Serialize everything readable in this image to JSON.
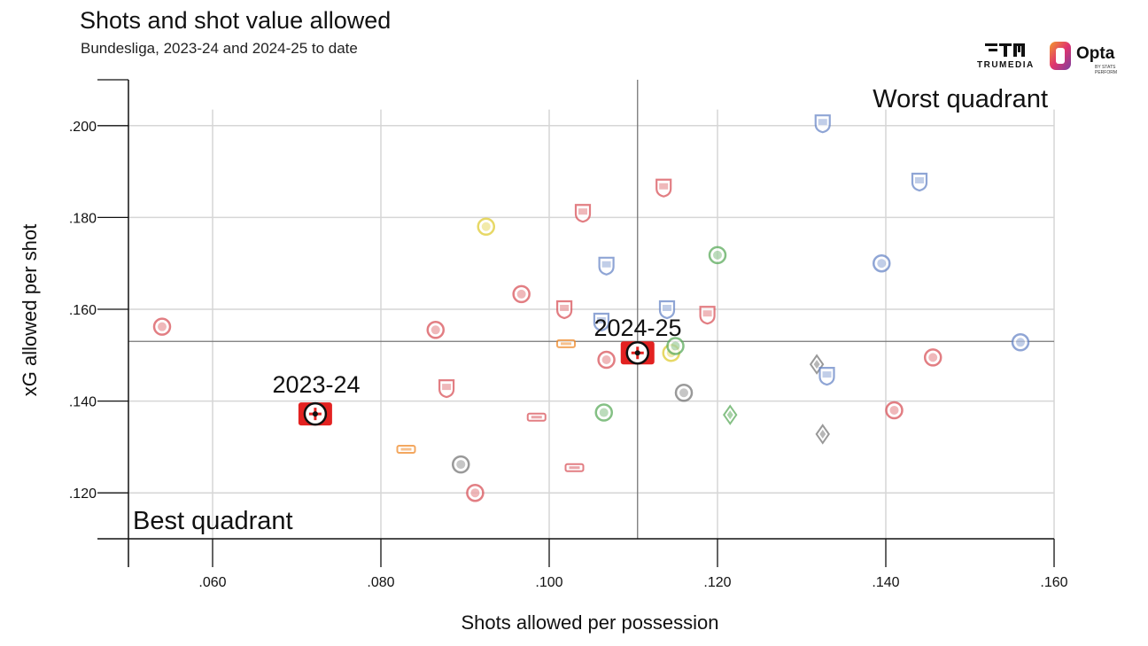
{
  "title": "Shots and shot value allowed",
  "subtitle": "Bundesliga, 2023-24 and 2024-25 to date",
  "branding": {
    "trumedia": "TRUMEDIA",
    "opta": "Opta",
    "opta_sub": "BY STATS PERFORM"
  },
  "colors": {
    "grid": "#d6d6d6",
    "axis": "#111111",
    "reference_line": "#777777"
  },
  "chart_data": {
    "type": "scatter",
    "title": "Shots and shot value allowed",
    "subtitle": "Bundesliga, 2023-24 and 2024-25 to date",
    "xlabel": "Shots allowed per possession",
    "ylabel": "xG allowed per shot",
    "xlim": [
      0.05,
      0.16
    ],
    "ylim": [
      0.11,
      0.21
    ],
    "x_ticks": [
      ".060",
      ".080",
      ".100",
      ".120",
      ".140",
      ".160"
    ],
    "y_ticks": [
      ".120",
      ".140",
      ".160",
      ".180",
      ".200"
    ],
    "x_tick_values": [
      0.06,
      0.08,
      0.1,
      0.12,
      0.14,
      0.16
    ],
    "y_tick_values": [
      0.12,
      0.14,
      0.16,
      0.18,
      0.2
    ],
    "grid": true,
    "reference_lines": {
      "x": 0.1105,
      "y": 0.153
    },
    "annotations": {
      "worst": "Worst quadrant",
      "best": "Best quadrant",
      "season_2023": "2023-24",
      "season_2024": "2024-25"
    },
    "highlight_points": [
      {
        "label": "2023-24",
        "x": 0.0722,
        "y": 0.1372
      },
      {
        "label": "2024-25",
        "x": 0.1105,
        "y": 0.1505
      }
    ],
    "points": [
      {
        "x": 0.054,
        "y": 0.1562,
        "color": "#d9535a",
        "icon": "circle-crest"
      },
      {
        "x": 0.0865,
        "y": 0.1555,
        "color": "#d9535a",
        "icon": "circle-crest"
      },
      {
        "x": 0.0925,
        "y": 0.178,
        "color": "#e0cc33",
        "icon": "circle-crest"
      },
      {
        "x": 0.0967,
        "y": 0.1633,
        "color": "#d9535a",
        "icon": "circle-crest"
      },
      {
        "x": 0.1018,
        "y": 0.16,
        "color": "#d9535a",
        "icon": "shield-crest"
      },
      {
        "x": 0.104,
        "y": 0.181,
        "color": "#d9535a",
        "icon": "shield-crest"
      },
      {
        "x": 0.102,
        "y": 0.1525,
        "color": "#f08a2a",
        "icon": "bar-crest"
      },
      {
        "x": 0.1062,
        "y": 0.1573,
        "color": "#6a88c8",
        "icon": "shield-crest"
      },
      {
        "x": 0.1068,
        "y": 0.1695,
        "color": "#6a88c8",
        "icon": "shield-crest"
      },
      {
        "x": 0.1068,
        "y": 0.149,
        "color": "#d9535a",
        "icon": "circle-crest"
      },
      {
        "x": 0.1136,
        "y": 0.1865,
        "color": "#d9535a",
        "icon": "shield-crest"
      },
      {
        "x": 0.114,
        "y": 0.16,
        "color": "#6a88c8",
        "icon": "shield-crest"
      },
      {
        "x": 0.1145,
        "y": 0.1505,
        "color": "#e0cc33",
        "icon": "circle-crest"
      },
      {
        "x": 0.115,
        "y": 0.152,
        "color": "#5cab5c",
        "icon": "circle-crest"
      },
      {
        "x": 0.1188,
        "y": 0.1588,
        "color": "#d9535a",
        "icon": "shield-crest"
      },
      {
        "x": 0.12,
        "y": 0.1718,
        "color": "#5cab5c",
        "icon": "circle-crest"
      },
      {
        "x": 0.116,
        "y": 0.1418,
        "color": "#777777",
        "icon": "circle-crest"
      },
      {
        "x": 0.1215,
        "y": 0.137,
        "color": "#5cab5c",
        "icon": "diamond-crest"
      },
      {
        "x": 0.1318,
        "y": 0.148,
        "color": "#777777",
        "icon": "diamond-crest"
      },
      {
        "x": 0.133,
        "y": 0.1455,
        "color": "#6a88c8",
        "icon": "shield-crest"
      },
      {
        "x": 0.1325,
        "y": 0.1328,
        "color": "#777777",
        "icon": "diamond-crest"
      },
      {
        "x": 0.1325,
        "y": 0.2005,
        "color": "#6a88c8",
        "icon": "shield-crest"
      },
      {
        "x": 0.144,
        "y": 0.1878,
        "color": "#6a88c8",
        "icon": "shield-crest"
      },
      {
        "x": 0.1395,
        "y": 0.17,
        "color": "#6a88c8",
        "icon": "circle-crest"
      },
      {
        "x": 0.1456,
        "y": 0.1495,
        "color": "#d9535a",
        "icon": "circle-crest"
      },
      {
        "x": 0.141,
        "y": 0.138,
        "color": "#d9535a",
        "icon": "circle-crest"
      },
      {
        "x": 0.156,
        "y": 0.1528,
        "color": "#6a88c8",
        "icon": "circle-crest"
      },
      {
        "x": 0.0878,
        "y": 0.1428,
        "color": "#d9535a",
        "icon": "shield-crest"
      },
      {
        "x": 0.0985,
        "y": 0.1365,
        "color": "#d9535a",
        "icon": "bar-crest"
      },
      {
        "x": 0.1065,
        "y": 0.1375,
        "color": "#5cab5c",
        "icon": "circle-crest"
      },
      {
        "x": 0.083,
        "y": 0.1295,
        "color": "#f08a2a",
        "icon": "bar-crest"
      },
      {
        "x": 0.0895,
        "y": 0.1262,
        "color": "#777777",
        "icon": "circle-crest"
      },
      {
        "x": 0.103,
        "y": 0.1255,
        "color": "#d9535a",
        "icon": "bar-crest"
      },
      {
        "x": 0.0912,
        "y": 0.12,
        "color": "#d9535a",
        "icon": "circle-crest"
      }
    ]
  }
}
